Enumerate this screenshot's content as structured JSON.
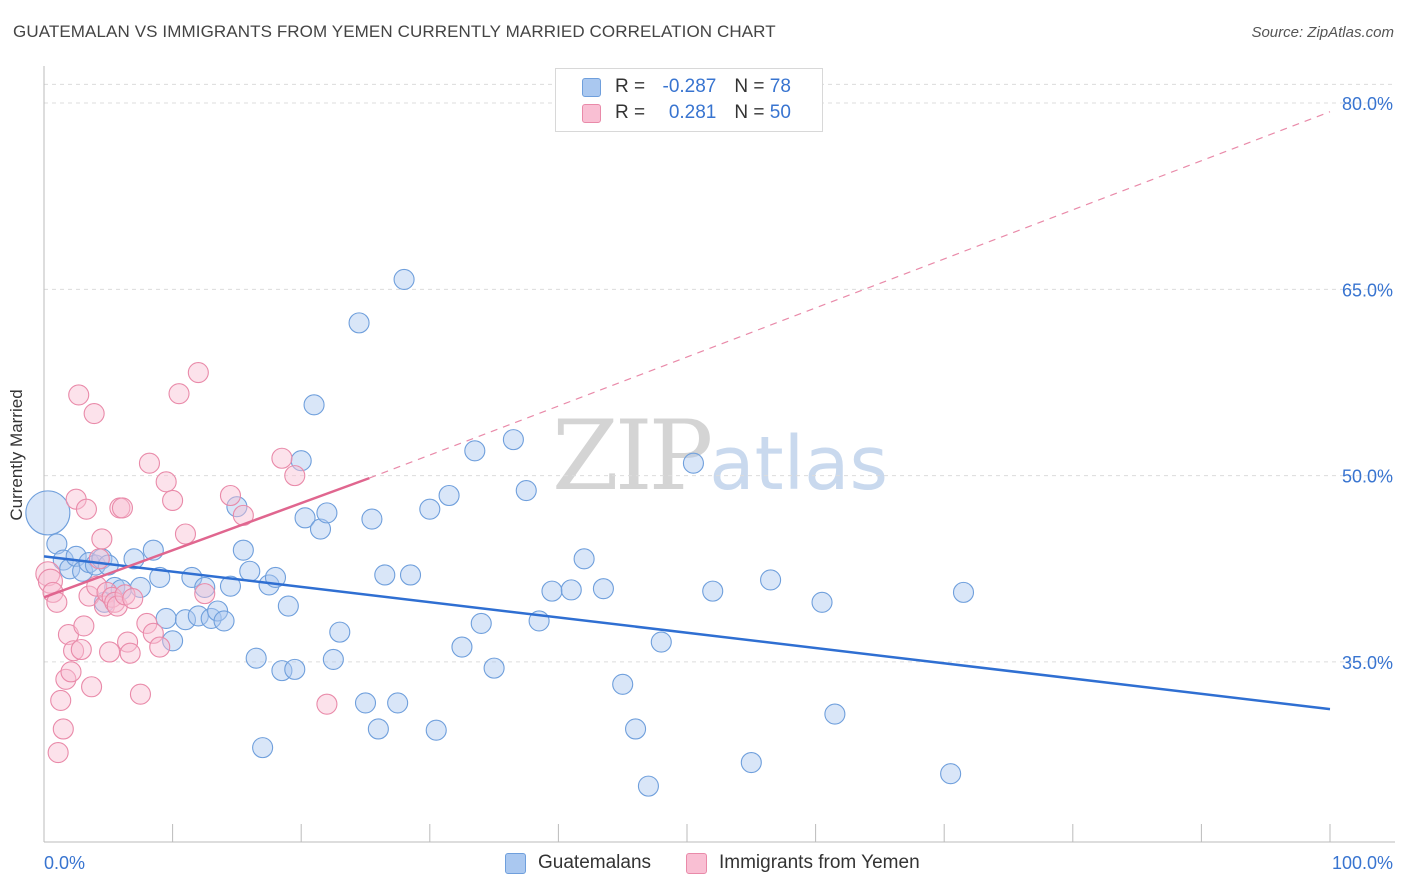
{
  "title": "GUATEMALAN VS IMMIGRANTS FROM YEMEN CURRENTLY MARRIED CORRELATION CHART",
  "source": "Source: ZipAtlas.com",
  "watermark": {
    "zip": "ZIP",
    "atlas": "atlas"
  },
  "legend": {
    "rows": [
      {
        "r_label": "R = ",
        "r_value": "-0.287",
        "n_label": "N = ",
        "n_value": "78",
        "color": "#aac8f0",
        "border": "#6f9fdc"
      },
      {
        "r_label": "R = ",
        "r_value": "0.281",
        "n_label": "N = ",
        "n_value": "50",
        "color": "#f9bfd3",
        "border": "#e98aa9"
      }
    ]
  },
  "bottom_legend": [
    {
      "label": "Guatemalans",
      "color": "#aac8f0",
      "border": "#6f9fdc"
    },
    {
      "label": "Immigrants from Yemen",
      "color": "#f9bfd3",
      "border": "#e98aa9"
    }
  ],
  "chart_data": {
    "type": "scatter",
    "ylabel": "Currently Married",
    "xlim": [
      0,
      100
    ],
    "ylim": [
      20.5,
      82.5
    ],
    "x_tick_labels": [
      "0.0%",
      "100.0%"
    ],
    "y_ticks": [
      35,
      50,
      65,
      80
    ],
    "y_tick_labels": [
      "35.0%",
      "50.0%",
      "65.0%",
      "80.0%"
    ],
    "grid": "horizontal dashed",
    "series": [
      {
        "name": "Guatemalans",
        "color": "#6f9fdc",
        "fill": "#aac8f0",
        "trend": {
          "x0": 0,
          "y0": 43.5,
          "x1": 100,
          "y1": 31.2,
          "color": "#2f6fd2"
        },
        "points": [
          [
            0.3,
            47.0,
            22
          ],
          [
            1.0,
            44.5,
            10
          ],
          [
            1.5,
            43.2,
            10
          ],
          [
            2.0,
            42.5,
            10
          ],
          [
            2.5,
            43.5,
            10
          ],
          [
            3.0,
            42.3,
            10
          ],
          [
            3.5,
            43.0,
            10
          ],
          [
            4.0,
            42.8,
            10
          ],
          [
            4.5,
            43.3,
            10
          ],
          [
            5.0,
            42.8,
            10
          ],
          [
            4.7,
            39.8,
            10
          ],
          [
            5.5,
            41.0,
            10
          ],
          [
            6.0,
            40.8,
            10
          ],
          [
            7.0,
            43.3,
            10
          ],
          [
            7.5,
            41.0,
            10
          ],
          [
            8.5,
            44.0,
            10
          ],
          [
            9.0,
            41.8,
            10
          ],
          [
            9.5,
            38.5,
            10
          ],
          [
            10.0,
            36.7,
            10
          ],
          [
            11.0,
            38.4,
            10
          ],
          [
            11.5,
            41.8,
            10
          ],
          [
            12.0,
            38.7,
            10
          ],
          [
            12.5,
            41.0,
            10
          ],
          [
            13.0,
            38.5,
            10
          ],
          [
            13.5,
            39.1,
            10
          ],
          [
            14.0,
            38.3,
            10
          ],
          [
            14.5,
            41.1,
            10
          ],
          [
            15.0,
            47.5,
            10
          ],
          [
            15.5,
            44.0,
            10
          ],
          [
            16.0,
            42.3,
            10
          ],
          [
            16.5,
            35.3,
            10
          ],
          [
            17.0,
            28.1,
            10
          ],
          [
            17.5,
            41.2,
            10
          ],
          [
            18.0,
            41.8,
            10
          ],
          [
            18.5,
            34.3,
            10
          ],
          [
            19.0,
            39.5,
            10
          ],
          [
            19.5,
            34.4,
            10
          ],
          [
            20.0,
            51.2,
            10
          ],
          [
            20.3,
            46.6,
            10
          ],
          [
            21.0,
            55.7,
            10
          ],
          [
            21.5,
            45.7,
            10
          ],
          [
            22.0,
            47.0,
            10
          ],
          [
            22.5,
            35.2,
            10
          ],
          [
            23.0,
            37.4,
            10
          ],
          [
            24.5,
            62.3,
            10
          ],
          [
            25.0,
            31.7,
            10
          ],
          [
            25.5,
            46.5,
            10
          ],
          [
            26.0,
            29.6,
            10
          ],
          [
            26.5,
            42.0,
            10
          ],
          [
            27.5,
            31.7,
            10
          ],
          [
            28.0,
            65.8,
            10
          ],
          [
            28.5,
            42.0,
            10
          ],
          [
            30.0,
            47.3,
            10
          ],
          [
            30.5,
            29.5,
            10
          ],
          [
            31.5,
            48.4,
            10
          ],
          [
            32.5,
            36.2,
            10
          ],
          [
            33.5,
            52.0,
            10
          ],
          [
            34.0,
            38.1,
            10
          ],
          [
            35.0,
            34.5,
            10
          ],
          [
            36.5,
            52.9,
            10
          ],
          [
            37.5,
            48.8,
            10
          ],
          [
            38.5,
            38.3,
            10
          ],
          [
            39.5,
            40.7,
            10
          ],
          [
            41.0,
            40.8,
            10
          ],
          [
            42.0,
            43.3,
            10
          ],
          [
            43.5,
            40.9,
            10
          ],
          [
            45.0,
            33.2,
            10
          ],
          [
            46.0,
            29.6,
            10
          ],
          [
            47.0,
            25.0,
            10
          ],
          [
            48.0,
            36.6,
            10
          ],
          [
            50.5,
            51.0,
            10
          ],
          [
            52.0,
            40.7,
            10
          ],
          [
            55.0,
            26.9,
            10
          ],
          [
            56.5,
            41.6,
            10
          ],
          [
            60.5,
            39.8,
            10
          ],
          [
            61.5,
            30.8,
            10
          ],
          [
            70.5,
            26.0,
            10
          ],
          [
            71.5,
            40.6,
            10
          ]
        ]
      },
      {
        "name": "Immigrants from Yemen",
        "color": "#e98aa9",
        "fill": "#f9bfd3",
        "trend": {
          "x0": 0,
          "y0": 40.2,
          "x1": 25.3,
          "y1": 49.8,
          "color": "#e0668f"
        },
        "trend_ext": {
          "x0": 25.3,
          "y0": 49.8,
          "x1": 100,
          "y1": 79.3,
          "color": "#e98aa9"
        },
        "points": [
          [
            0.3,
            42.1,
            12
          ],
          [
            0.5,
            41.5,
            12
          ],
          [
            0.7,
            40.6,
            10
          ],
          [
            1.0,
            39.8,
            10
          ],
          [
            1.1,
            27.7,
            10
          ],
          [
            1.3,
            31.9,
            10
          ],
          [
            1.5,
            29.6,
            10
          ],
          [
            1.7,
            33.6,
            10
          ],
          [
            1.9,
            37.2,
            10
          ],
          [
            2.1,
            34.2,
            10
          ],
          [
            2.3,
            35.9,
            10
          ],
          [
            2.5,
            48.1,
            10
          ],
          [
            2.7,
            56.5,
            10
          ],
          [
            2.9,
            36.0,
            10
          ],
          [
            3.1,
            37.9,
            10
          ],
          [
            3.3,
            47.3,
            10
          ],
          [
            3.5,
            40.3,
            10
          ],
          [
            3.7,
            33.0,
            10
          ],
          [
            3.9,
            55.0,
            10
          ],
          [
            4.1,
            41.1,
            10
          ],
          [
            4.3,
            43.3,
            10
          ],
          [
            4.5,
            44.9,
            10
          ],
          [
            4.7,
            39.5,
            10
          ],
          [
            4.9,
            40.6,
            10
          ],
          [
            5.1,
            35.8,
            10
          ],
          [
            5.3,
            40.2,
            10
          ],
          [
            5.5,
            39.8,
            10
          ],
          [
            5.7,
            39.5,
            10
          ],
          [
            5.9,
            47.4,
            10
          ],
          [
            6.1,
            47.4,
            10
          ],
          [
            6.3,
            40.4,
            10
          ],
          [
            6.5,
            36.6,
            10
          ],
          [
            6.7,
            35.7,
            10
          ],
          [
            6.9,
            40.1,
            10
          ],
          [
            7.5,
            32.4,
            10
          ],
          [
            8.0,
            38.1,
            10
          ],
          [
            8.2,
            51.0,
            10
          ],
          [
            8.5,
            37.3,
            10
          ],
          [
            9.0,
            36.2,
            10
          ],
          [
            9.5,
            49.5,
            10
          ],
          [
            10.0,
            48.0,
            10
          ],
          [
            10.5,
            56.6,
            10
          ],
          [
            11.0,
            45.3,
            10
          ],
          [
            12.0,
            58.3,
            10
          ],
          [
            12.5,
            40.5,
            10
          ],
          [
            14.5,
            48.4,
            10
          ],
          [
            15.5,
            46.8,
            10
          ],
          [
            18.5,
            51.4,
            10
          ],
          [
            19.5,
            50.0,
            10
          ],
          [
            22.0,
            31.6,
            10
          ]
        ]
      }
    ]
  }
}
